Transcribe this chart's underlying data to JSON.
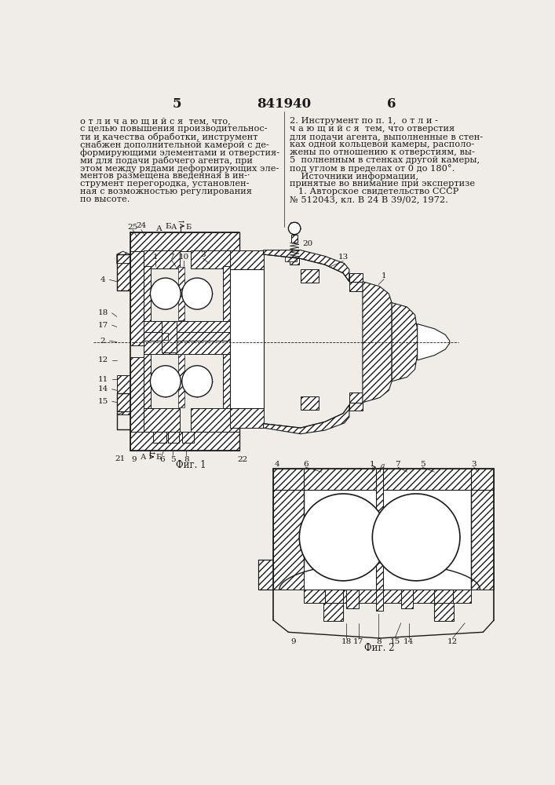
{
  "page_number_left": "5",
  "page_number_center": "841940",
  "page_number_right": "6",
  "bg_color": "#f0ede8",
  "text_color": "#1a1a1a",
  "line_color": "#1a1a1a",
  "left_col_lines": [
    "о т л и ч а ю щ и й с я  тем, что,",
    "с целью повышения производительнос-",
    "ти и качества обработки, инструмент",
    "снабжен дополнительной камерой с де-",
    "формирующими элементами и отверстия-",
    "ми для подачи рабочего агента, при",
    "этом между рядами деформирующих эле-",
    "ментов размещена введенная в ин-·",
    "струмент перегородка, установлен-",
    "ная с возможностью регулирования",
    "по высоте."
  ],
  "right_col_lines": [
    "2. Инструмент по п. 1,  о т л и -",
    "ч а ю щ и й с я  тем, что отверстия",
    "для подачи агента, выполненные в стен-",
    "ках одной кольцевой камеры, располо-",
    "жены по отношению к отверстиям, вы-",
    "5  полненным в стенках другой камеры,",
    "под углом в пределах от 0 до 180°.",
    "    Источники информации,",
    "принятые во внимание при экспертизе",
    "   1. Авторское свидетельство СССР",
    "№ 512043, кл. В 24 В 39/02, 1972."
  ],
  "fig1_label": "Фиг. 1",
  "fig2_label": "Фиг. 2",
  "font_size_text": 8.2,
  "font_size_header": 12,
  "font_size_fig": 8.5,
  "font_size_label": 7.5
}
